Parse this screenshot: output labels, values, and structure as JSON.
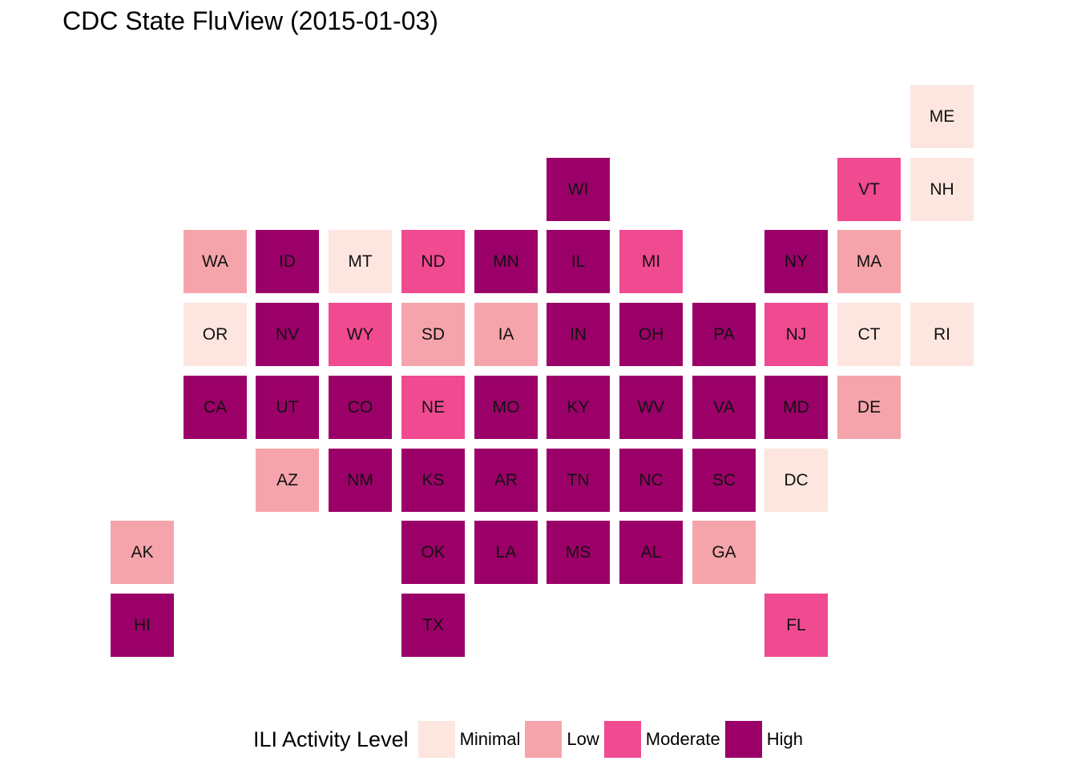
{
  "chart_data": {
    "type": "heatmap",
    "title": "CDC State FluView (2015-01-03)",
    "legend_title": "ILI Activity Level",
    "legend_position": "bottom",
    "levels": [
      {
        "name": "Minimal",
        "color": "#fde6df"
      },
      {
        "name": "Low",
        "color": "#f6a4ab"
      },
      {
        "name": "Moderate",
        "color": "#f04a90"
      },
      {
        "name": "High",
        "color": "#9b0068"
      }
    ],
    "states": [
      {
        "abbr": "ME",
        "col": 11,
        "row": 0,
        "level": "Minimal"
      },
      {
        "abbr": "WI",
        "col": 6,
        "row": 1,
        "level": "High"
      },
      {
        "abbr": "VT",
        "col": 10,
        "row": 1,
        "level": "Moderate"
      },
      {
        "abbr": "NH",
        "col": 11,
        "row": 1,
        "level": "Minimal"
      },
      {
        "abbr": "WA",
        "col": 1,
        "row": 2,
        "level": "Low"
      },
      {
        "abbr": "ID",
        "col": 2,
        "row": 2,
        "level": "High"
      },
      {
        "abbr": "MT",
        "col": 3,
        "row": 2,
        "level": "Minimal"
      },
      {
        "abbr": "ND",
        "col": 4,
        "row": 2,
        "level": "Moderate"
      },
      {
        "abbr": "MN",
        "col": 5,
        "row": 2,
        "level": "High"
      },
      {
        "abbr": "IL",
        "col": 6,
        "row": 2,
        "level": "High"
      },
      {
        "abbr": "MI",
        "col": 7,
        "row": 2,
        "level": "Moderate"
      },
      {
        "abbr": "NY",
        "col": 9,
        "row": 2,
        "level": "High"
      },
      {
        "abbr": "MA",
        "col": 10,
        "row": 2,
        "level": "Low"
      },
      {
        "abbr": "OR",
        "col": 1,
        "row": 3,
        "level": "Minimal"
      },
      {
        "abbr": "NV",
        "col": 2,
        "row": 3,
        "level": "High"
      },
      {
        "abbr": "WY",
        "col": 3,
        "row": 3,
        "level": "Moderate"
      },
      {
        "abbr": "SD",
        "col": 4,
        "row": 3,
        "level": "Low"
      },
      {
        "abbr": "IA",
        "col": 5,
        "row": 3,
        "level": "Low"
      },
      {
        "abbr": "IN",
        "col": 6,
        "row": 3,
        "level": "High"
      },
      {
        "abbr": "OH",
        "col": 7,
        "row": 3,
        "level": "High"
      },
      {
        "abbr": "PA",
        "col": 8,
        "row": 3,
        "level": "High"
      },
      {
        "abbr": "NJ",
        "col": 9,
        "row": 3,
        "level": "Moderate"
      },
      {
        "abbr": "CT",
        "col": 10,
        "row": 3,
        "level": "Minimal"
      },
      {
        "abbr": "RI",
        "col": 11,
        "row": 3,
        "level": "Minimal"
      },
      {
        "abbr": "CA",
        "col": 1,
        "row": 4,
        "level": "High"
      },
      {
        "abbr": "UT",
        "col": 2,
        "row": 4,
        "level": "High"
      },
      {
        "abbr": "CO",
        "col": 3,
        "row": 4,
        "level": "High"
      },
      {
        "abbr": "NE",
        "col": 4,
        "row": 4,
        "level": "Moderate"
      },
      {
        "abbr": "MO",
        "col": 5,
        "row": 4,
        "level": "High"
      },
      {
        "abbr": "KY",
        "col": 6,
        "row": 4,
        "level": "High"
      },
      {
        "abbr": "WV",
        "col": 7,
        "row": 4,
        "level": "High"
      },
      {
        "abbr": "VA",
        "col": 8,
        "row": 4,
        "level": "High"
      },
      {
        "abbr": "MD",
        "col": 9,
        "row": 4,
        "level": "High"
      },
      {
        "abbr": "DE",
        "col": 10,
        "row": 4,
        "level": "Low"
      },
      {
        "abbr": "AZ",
        "col": 2,
        "row": 5,
        "level": "Low"
      },
      {
        "abbr": "NM",
        "col": 3,
        "row": 5,
        "level": "High"
      },
      {
        "abbr": "KS",
        "col": 4,
        "row": 5,
        "level": "High"
      },
      {
        "abbr": "AR",
        "col": 5,
        "row": 5,
        "level": "High"
      },
      {
        "abbr": "TN",
        "col": 6,
        "row": 5,
        "level": "High"
      },
      {
        "abbr": "NC",
        "col": 7,
        "row": 5,
        "level": "High"
      },
      {
        "abbr": "SC",
        "col": 8,
        "row": 5,
        "level": "High"
      },
      {
        "abbr": "DC",
        "col": 9,
        "row": 5,
        "level": "Minimal"
      },
      {
        "abbr": "AK",
        "col": 0,
        "row": 6,
        "level": "Low"
      },
      {
        "abbr": "OK",
        "col": 4,
        "row": 6,
        "level": "High"
      },
      {
        "abbr": "LA",
        "col": 5,
        "row": 6,
        "level": "High"
      },
      {
        "abbr": "MS",
        "col": 6,
        "row": 6,
        "level": "High"
      },
      {
        "abbr": "AL",
        "col": 7,
        "row": 6,
        "level": "High"
      },
      {
        "abbr": "GA",
        "col": 8,
        "row": 6,
        "level": "Low"
      },
      {
        "abbr": "HI",
        "col": 0,
        "row": 7,
        "level": "High"
      },
      {
        "abbr": "TX",
        "col": 4,
        "row": 7,
        "level": "High"
      },
      {
        "abbr": "FL",
        "col": 9,
        "row": 7,
        "level": "Moderate"
      }
    ]
  }
}
